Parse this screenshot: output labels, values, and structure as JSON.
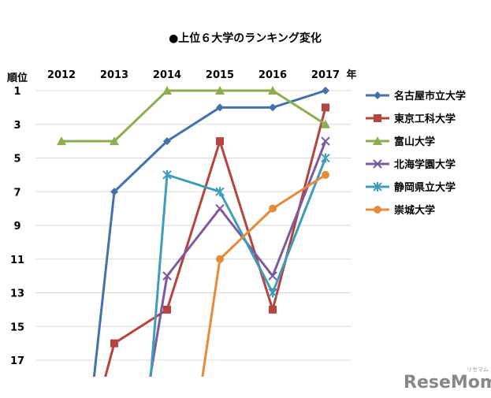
{
  "chart_data": {
    "type": "line",
    "title": "●上位６大学のランキング変化",
    "x_unit": "年",
    "y_unit": "順位",
    "x": [
      "2012",
      "2013",
      "2014",
      "2015",
      "2016",
      "2017"
    ],
    "y_ticks": [
      1,
      3,
      5,
      7,
      9,
      11,
      13,
      15,
      17
    ],
    "ylim": [
      1,
      18
    ],
    "y_inverted": true,
    "grid": "horizontal",
    "legend": "right",
    "series": [
      {
        "name": "名古屋市立大学",
        "values": [
          null,
          7,
          4,
          2,
          2,
          1
        ],
        "color": "#4472a8",
        "marker": "diamond"
      },
      {
        "name": "東京工科大学",
        "values": [
          null,
          16,
          14,
          4,
          14,
          2
        ],
        "color": "#b5443f",
        "marker": "square"
      },
      {
        "name": "富山大学",
        "values": [
          4,
          4,
          1,
          1,
          1,
          3
        ],
        "color": "#8cae4f",
        "marker": "triangle"
      },
      {
        "name": "北海学園大学",
        "values": [
          null,
          null,
          12,
          8,
          12,
          4
        ],
        "color": "#7b5a9e",
        "marker": "x"
      },
      {
        "name": "静岡県立大学",
        "values": [
          null,
          null,
          6,
          7,
          13,
          5
        ],
        "color": "#3f9db8",
        "marker": "star"
      },
      {
        "name": "崇城大学",
        "values": [
          null,
          null,
          null,
          11,
          8,
          6
        ],
        "color": "#e48c3c",
        "marker": "circle"
      }
    ]
  },
  "watermark": {
    "text": "ReseMom",
    "sub": "リセマム"
  }
}
